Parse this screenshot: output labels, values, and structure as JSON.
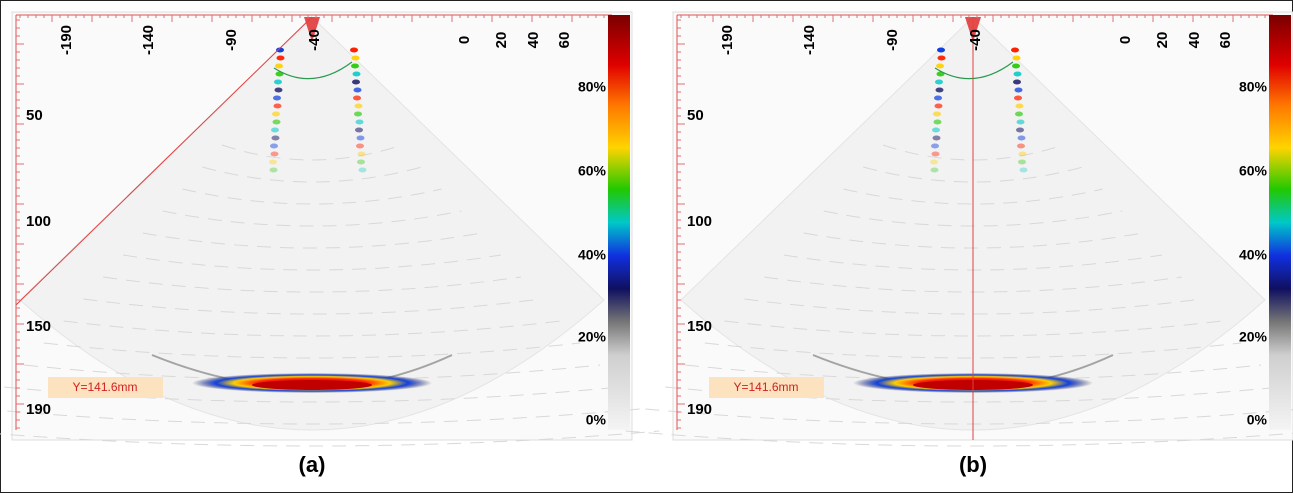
{
  "panels": [
    {
      "label": "(a)",
      "x_ticks": [
        "-190",
        "-140",
        "-90",
        "-40",
        "0",
        "20",
        "40",
        "60"
      ],
      "y_ticks": [
        "50",
        "100",
        "150",
        "190"
      ],
      "colorbar_ticks": [
        "80%",
        "60%",
        "40%",
        "20%",
        "0%"
      ],
      "annotation": "Y=141.6mm"
    },
    {
      "label": "(b)",
      "x_ticks": [
        "-190",
        "-140",
        "-90",
        "-40",
        "0",
        "20",
        "40",
        "60"
      ],
      "y_ticks": [
        "50",
        "100",
        "150",
        "190"
      ],
      "colorbar_ticks": [
        "80%",
        "60%",
        "40%",
        "20%",
        "0%"
      ],
      "annotation": "Y=141.6mm"
    }
  ]
}
